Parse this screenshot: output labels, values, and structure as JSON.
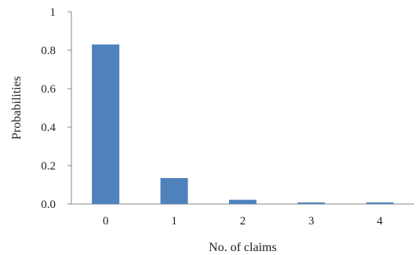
{
  "chart_data": {
    "type": "bar",
    "title": "",
    "xlabel": "No. of claims",
    "ylabel": "Probabilities",
    "categories": [
      "0",
      "1",
      "2",
      "3",
      "4"
    ],
    "values": [
      0.83,
      0.135,
      0.022,
      0.008,
      0.008
    ],
    "ylim": [
      0,
      1
    ],
    "yticks": [
      {
        "value": 0,
        "label": "0.0"
      },
      {
        "value": 0.2,
        "label": "0.2"
      },
      {
        "value": 0.4,
        "label": "0.4"
      },
      {
        "value": 0.6,
        "label": "0.6"
      },
      {
        "value": 0.8,
        "label": "0.8"
      },
      {
        "value": 1,
        "label": "1"
      }
    ],
    "grid": false,
    "legend": "none",
    "bar_color": "#4f81bd",
    "axis_color": "#888888"
  }
}
